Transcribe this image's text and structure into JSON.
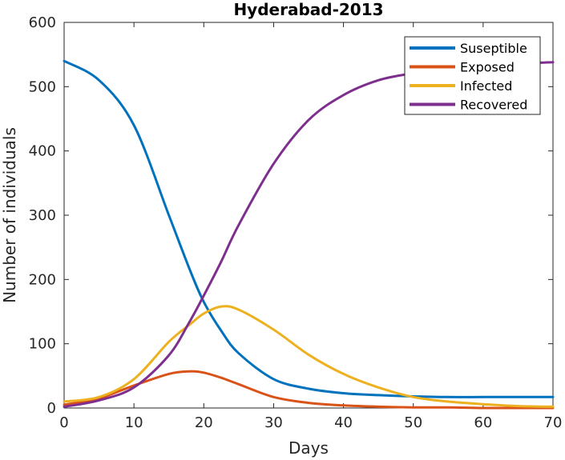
{
  "chart_data": {
    "type": "line",
    "title": "Hyderabad-2013",
    "xlabel": "Days",
    "ylabel": "Number of individuals",
    "xlim": [
      0,
      70
    ],
    "ylim": [
      0,
      600
    ],
    "x_ticks": [
      0,
      10,
      20,
      30,
      40,
      50,
      60,
      70
    ],
    "y_ticks": [
      0,
      100,
      200,
      300,
      400,
      500,
      600
    ],
    "grid": false,
    "legend_position": "top-right",
    "x": [
      0,
      5,
      10,
      15,
      18,
      20,
      22.5,
      25,
      30,
      35,
      40,
      45,
      50,
      55,
      60,
      65,
      70
    ],
    "series": [
      {
        "name": "Suseptible",
        "color": "#0072BD",
        "values": [
          540,
          510,
          440,
          300,
          215,
          165,
          120,
          85,
          45,
          30,
          23,
          20,
          18,
          17,
          17,
          17,
          17
        ]
      },
      {
        "name": "Exposed",
        "color": "#D95319",
        "values": [
          5,
          15,
          35,
          53,
          57,
          55,
          47,
          37,
          17,
          8,
          4,
          2,
          1,
          1,
          0,
          0,
          0
        ]
      },
      {
        "name": "Infected",
        "color": "#EDB120",
        "values": [
          10,
          17,
          45,
          103,
          130,
          147,
          158,
          153,
          122,
          83,
          53,
          32,
          17,
          10,
          6,
          3,
          2
        ]
      },
      {
        "name": "Recovered",
        "color": "#7E2F8E",
        "values": [
          2,
          12,
          32,
          82,
          135,
          175,
          228,
          285,
          380,
          448,
          487,
          510,
          521,
          528,
          533,
          536,
          538
        ]
      }
    ]
  }
}
